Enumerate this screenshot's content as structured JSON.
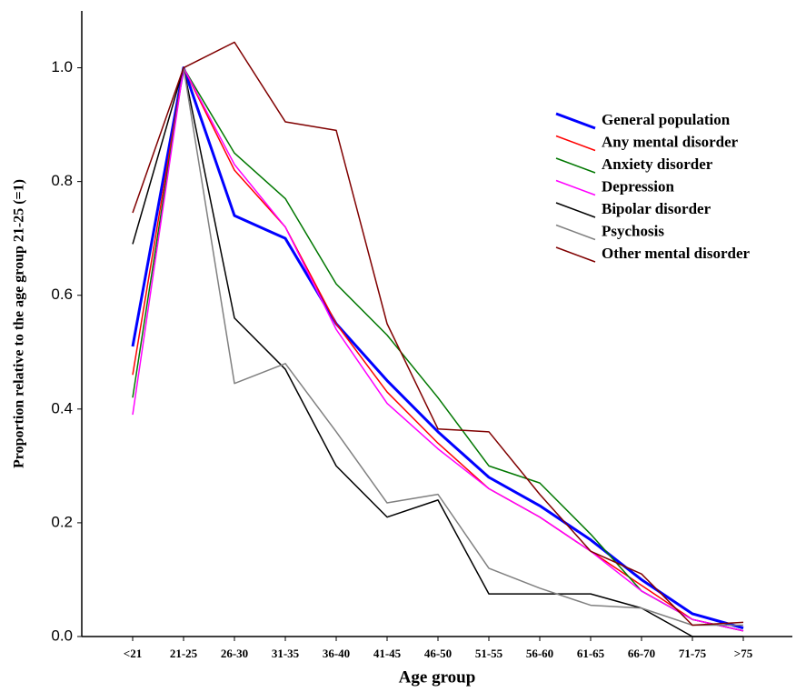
{
  "chart_data": {
    "type": "line",
    "x_label": "Age group",
    "y_label": "Proportion relative to the age group 21-25 (=1)",
    "categories": [
      "<21",
      "21-25",
      "26-30",
      "31-35",
      "36-40",
      "41-45",
      "46-50",
      "51-55",
      "56-60",
      "61-65",
      "66-70",
      "71-75",
      ">75"
    ],
    "ylim": [
      0,
      1.1
    ],
    "yticks": [
      {
        "value": 0,
        "label": "0.0"
      },
      {
        "value": 0.2,
        "label": "0.2"
      },
      {
        "value": 0.4,
        "label": "0.4"
      },
      {
        "value": 0.6,
        "label": "0.6"
      },
      {
        "value": 0.8,
        "label": "0.8"
      },
      {
        "value": 1,
        "label": "1.0"
      }
    ],
    "legend": "upper right",
    "series": [
      {
        "name": "General population",
        "color": "#0000ff",
        "values": [
          0.51,
          1.0,
          0.74,
          0.7,
          0.55,
          0.45,
          0.36,
          0.28,
          0.23,
          0.17,
          0.1,
          0.04,
          0.015
        ]
      },
      {
        "name": "Any mental disorder",
        "color": "#ff0000",
        "values": [
          0.46,
          1.0,
          0.82,
          0.72,
          0.55,
          0.43,
          0.34,
          0.26,
          0.21,
          0.15,
          0.09,
          0.03,
          0.01
        ]
      },
      {
        "name": "Anxiety disorder",
        "color": "#007700",
        "values": [
          0.42,
          1.0,
          0.85,
          0.77,
          0.62,
          0.53,
          0.42,
          0.3,
          0.27,
          0.18,
          0.08,
          0.03,
          0.01
        ]
      },
      {
        "name": "Depression",
        "color": "#ff00ff",
        "values": [
          0.39,
          1.0,
          0.83,
          0.72,
          0.54,
          0.41,
          0.33,
          0.26,
          0.21,
          0.15,
          0.08,
          0.03,
          0.01
        ]
      },
      {
        "name": "Bipolar disorder",
        "color": "#000000",
        "values": [
          0.69,
          1.0,
          0.56,
          0.47,
          0.3,
          0.21,
          0.24,
          0.075,
          0.075,
          0.075,
          0.05,
          0.0,
          0.0
        ]
      },
      {
        "name": "Psychosis",
        "color": "#808080",
        "values": [
          null,
          1.0,
          0.445,
          0.48,
          0.36,
          0.235,
          0.25,
          0.12,
          0.085,
          0.055,
          0.05,
          0.02,
          0.02
        ]
      },
      {
        "name": "Other mental disorder",
        "color": "#800000",
        "values": [
          0.745,
          1.0,
          1.045,
          0.905,
          0.89,
          0.55,
          0.365,
          0.36,
          0.25,
          0.15,
          0.11,
          0.02,
          0.025
        ]
      }
    ]
  }
}
